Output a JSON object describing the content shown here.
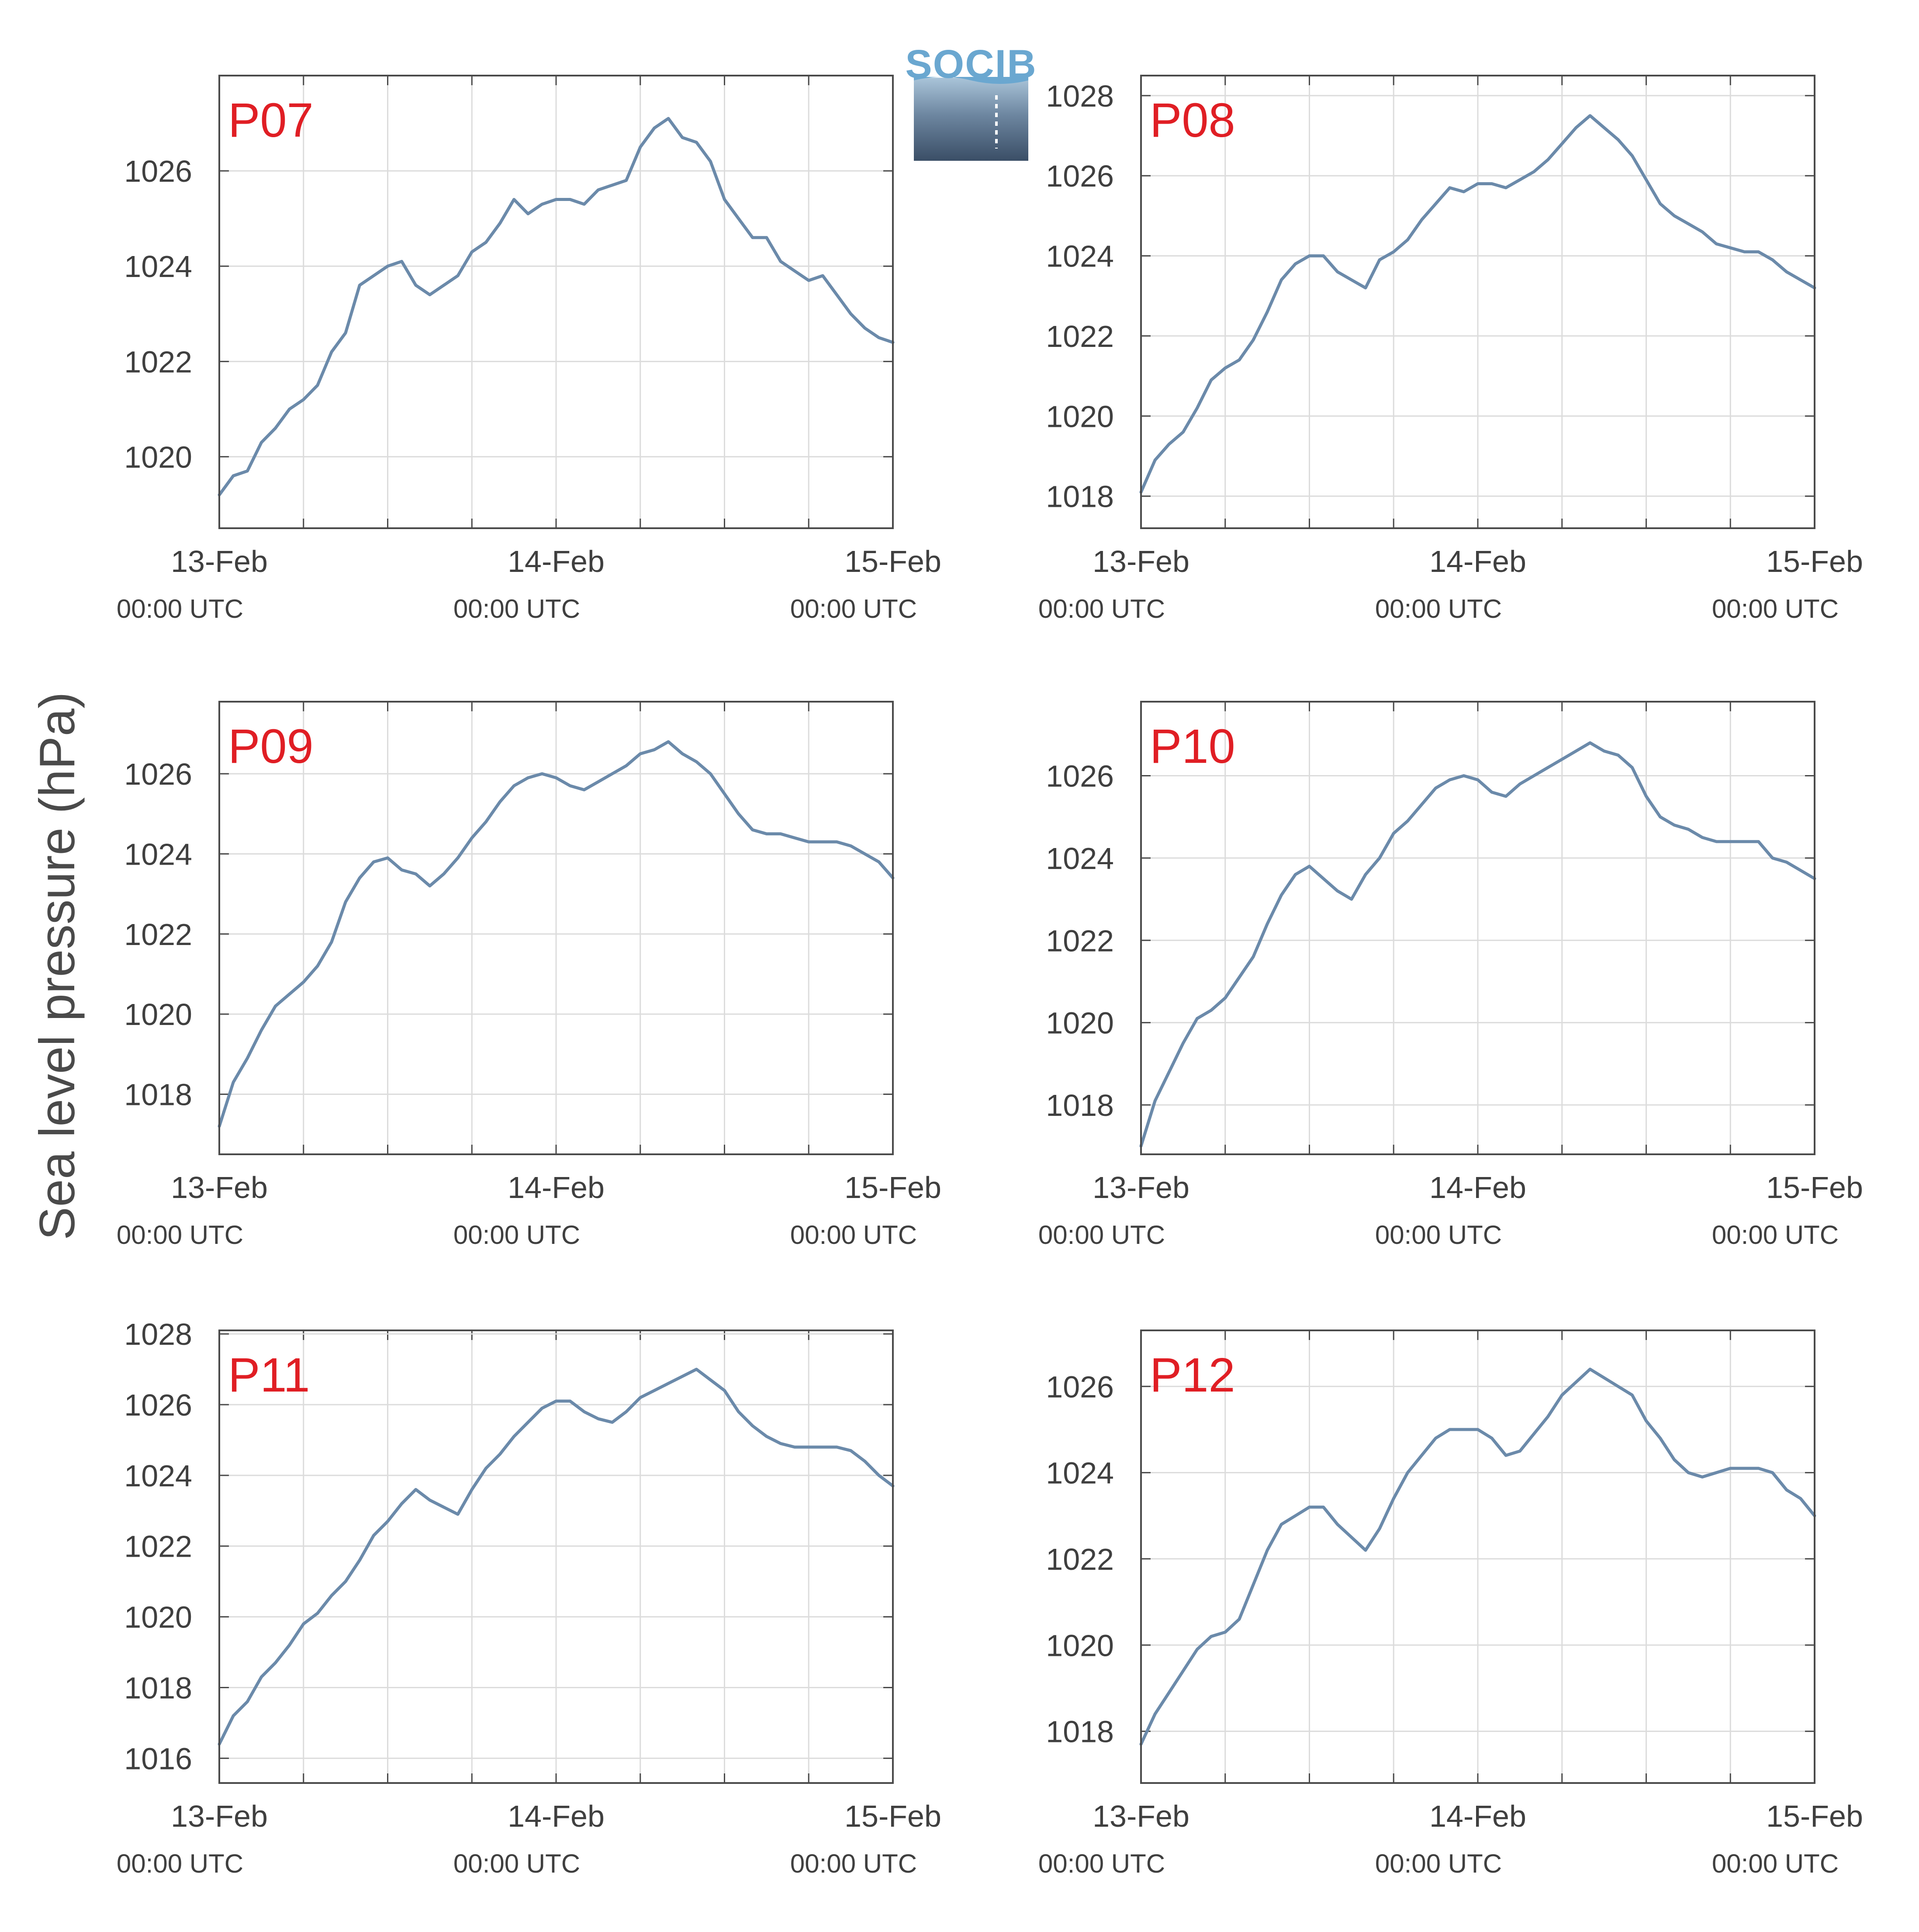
{
  "figure": {
    "ylabel": "Sea level pressure (hPa)",
    "logo_text": "SOCIB"
  },
  "colors": {
    "line": "#6b8aaa",
    "panel_label": "#e01e24",
    "grid": "#dcdcdc",
    "axis": "#4a4a4a",
    "logo_top": "#6aa7d0",
    "logo_bottom": "#3a4e66"
  },
  "chart_data": [
    {
      "type": "line",
      "panel_label": "P07",
      "x_ticks": [
        "13-Feb",
        "14-Feb",
        "15-Feb"
      ],
      "x_tick_sub": "00:00 UTC",
      "x_unit": "hours since 13-Feb 00:00 UTC",
      "xlim": [
        0,
        48
      ],
      "ylim": [
        1018.5,
        1028
      ],
      "y_ticks": [
        1020,
        1022,
        1024,
        1026
      ],
      "grid": true,
      "series": [
        {
          "x": [
            0,
            1,
            2,
            3,
            4,
            5,
            6,
            7,
            8,
            9,
            10,
            11,
            12,
            13,
            14,
            15,
            16,
            17,
            18,
            19,
            20,
            21,
            22,
            23,
            24,
            25,
            26,
            27,
            28,
            29,
            30,
            31,
            32,
            33,
            34,
            35,
            36,
            37,
            38,
            39,
            40,
            41,
            42,
            43,
            44,
            45,
            46,
            47,
            48
          ],
          "values": [
            1019.2,
            1019.6,
            1019.7,
            1020.3,
            1020.6,
            1021.0,
            1021.2,
            1021.5,
            1022.2,
            1022.6,
            1023.6,
            1023.8,
            1024.0,
            1024.1,
            1023.6,
            1023.4,
            1023.6,
            1023.8,
            1024.3,
            1024.5,
            1024.9,
            1025.4,
            1025.1,
            1025.3,
            1025.4,
            1025.4,
            1025.3,
            1025.6,
            1025.7,
            1025.8,
            1026.5,
            1026.9,
            1027.1,
            1026.7,
            1026.6,
            1026.2,
            1025.4,
            1025.0,
            1024.6,
            1024.6,
            1024.1,
            1023.9,
            1023.7,
            1023.8,
            1023.4,
            1023.0,
            1022.7,
            1022.5,
            1022.4
          ]
        }
      ]
    },
    {
      "type": "line",
      "panel_label": "P08",
      "x_ticks": [
        "13-Feb",
        "14-Feb",
        "15-Feb"
      ],
      "x_tick_sub": "00:00 UTC",
      "x_unit": "hours since 13-Feb 00:00 UTC",
      "xlim": [
        0,
        48
      ],
      "ylim": [
        1017.2,
        1028.5
      ],
      "y_ticks": [
        1018,
        1020,
        1022,
        1024,
        1026,
        1028
      ],
      "grid": true,
      "series": [
        {
          "x": [
            0,
            1,
            2,
            3,
            4,
            5,
            6,
            7,
            8,
            9,
            10,
            11,
            12,
            13,
            14,
            15,
            16,
            17,
            18,
            19,
            20,
            21,
            22,
            23,
            24,
            25,
            26,
            27,
            28,
            29,
            30,
            31,
            32,
            33,
            34,
            35,
            36,
            37,
            38,
            39,
            40,
            41,
            42,
            43,
            44,
            45,
            46,
            47,
            48
          ],
          "values": [
            1018.1,
            1018.9,
            1019.3,
            1019.6,
            1020.2,
            1020.9,
            1021.2,
            1021.4,
            1021.9,
            1022.6,
            1023.4,
            1023.8,
            1024.0,
            1024.0,
            1023.6,
            1023.4,
            1023.2,
            1023.9,
            1024.1,
            1024.4,
            1024.9,
            1025.3,
            1025.7,
            1025.6,
            1025.8,
            1025.8,
            1025.7,
            1025.9,
            1026.1,
            1026.4,
            1026.8,
            1027.2,
            1027.5,
            1027.2,
            1026.9,
            1026.5,
            1025.9,
            1025.3,
            1025.0,
            1024.8,
            1024.6,
            1024.3,
            1024.2,
            1024.1,
            1024.1,
            1023.9,
            1023.6,
            1023.4,
            1023.2
          ]
        }
      ]
    },
    {
      "type": "line",
      "panel_label": "P09",
      "x_ticks": [
        "13-Feb",
        "14-Feb",
        "15-Feb"
      ],
      "x_tick_sub": "00:00 UTC",
      "x_unit": "hours since 13-Feb 00:00 UTC",
      "xlim": [
        0,
        48
      ],
      "ylim": [
        1016.5,
        1027.8
      ],
      "y_ticks": [
        1018,
        1020,
        1022,
        1024,
        1026
      ],
      "grid": true,
      "series": [
        {
          "x": [
            0,
            1,
            2,
            3,
            4,
            5,
            6,
            7,
            8,
            9,
            10,
            11,
            12,
            13,
            14,
            15,
            16,
            17,
            18,
            19,
            20,
            21,
            22,
            23,
            24,
            25,
            26,
            27,
            28,
            29,
            30,
            31,
            32,
            33,
            34,
            35,
            36,
            37,
            38,
            39,
            40,
            41,
            42,
            43,
            44,
            45,
            46,
            47,
            48
          ],
          "values": [
            1017.2,
            1018.3,
            1018.9,
            1019.6,
            1020.2,
            1020.5,
            1020.8,
            1021.2,
            1021.8,
            1022.8,
            1023.4,
            1023.8,
            1023.9,
            1023.6,
            1023.5,
            1023.2,
            1023.5,
            1023.9,
            1024.4,
            1024.8,
            1025.3,
            1025.7,
            1025.9,
            1026.0,
            1025.9,
            1025.7,
            1025.6,
            1025.8,
            1026.0,
            1026.2,
            1026.5,
            1026.6,
            1026.8,
            1026.5,
            1026.3,
            1026.0,
            1025.5,
            1025.0,
            1024.6,
            1024.5,
            1024.5,
            1024.4,
            1024.3,
            1024.3,
            1024.3,
            1024.2,
            1024.0,
            1023.8,
            1023.4
          ]
        }
      ]
    },
    {
      "type": "line",
      "panel_label": "P10",
      "x_ticks": [
        "13-Feb",
        "14-Feb",
        "15-Feb"
      ],
      "x_tick_sub": "00:00 UTC",
      "x_unit": "hours since 13-Feb 00:00 UTC",
      "xlim": [
        0,
        48
      ],
      "ylim": [
        1016.8,
        1027.8
      ],
      "y_ticks": [
        1018,
        1020,
        1022,
        1024,
        1026
      ],
      "grid": true,
      "series": [
        {
          "x": [
            0,
            1,
            2,
            3,
            4,
            5,
            6,
            7,
            8,
            9,
            10,
            11,
            12,
            13,
            14,
            15,
            16,
            17,
            18,
            19,
            20,
            21,
            22,
            23,
            24,
            25,
            26,
            27,
            28,
            29,
            30,
            31,
            32,
            33,
            34,
            35,
            36,
            37,
            38,
            39,
            40,
            41,
            42,
            43,
            44,
            45,
            46,
            47,
            48
          ],
          "values": [
            1017.0,
            1018.1,
            1018.8,
            1019.5,
            1020.1,
            1020.3,
            1020.6,
            1021.1,
            1021.6,
            1022.4,
            1023.1,
            1023.6,
            1023.8,
            1023.5,
            1023.2,
            1023.0,
            1023.6,
            1024.0,
            1024.6,
            1024.9,
            1025.3,
            1025.7,
            1025.9,
            1026.0,
            1025.9,
            1025.6,
            1025.5,
            1025.8,
            1026.0,
            1026.2,
            1026.4,
            1026.6,
            1026.8,
            1026.6,
            1026.5,
            1026.2,
            1025.5,
            1025.0,
            1024.8,
            1024.7,
            1024.5,
            1024.4,
            1024.4,
            1024.4,
            1024.4,
            1024.0,
            1023.9,
            1023.7,
            1023.5
          ]
        }
      ]
    },
    {
      "type": "line",
      "panel_label": "P11",
      "x_ticks": [
        "13-Feb",
        "14-Feb",
        "15-Feb"
      ],
      "x_tick_sub": "00:00 UTC",
      "x_unit": "hours since 13-Feb 00:00 UTC",
      "xlim": [
        0,
        48
      ],
      "ylim": [
        1015.3,
        1028.1
      ],
      "y_ticks": [
        1016,
        1018,
        1020,
        1022,
        1024,
        1026,
        1028
      ],
      "grid": true,
      "series": [
        {
          "x": [
            0,
            1,
            2,
            3,
            4,
            5,
            6,
            7,
            8,
            9,
            10,
            11,
            12,
            13,
            14,
            15,
            16,
            17,
            18,
            19,
            20,
            21,
            22,
            23,
            24,
            25,
            26,
            27,
            28,
            29,
            30,
            31,
            32,
            33,
            34,
            35,
            36,
            37,
            38,
            39,
            40,
            41,
            42,
            43,
            44,
            45,
            46,
            47,
            48
          ],
          "values": [
            1016.4,
            1017.2,
            1017.6,
            1018.3,
            1018.7,
            1019.2,
            1019.8,
            1020.1,
            1020.6,
            1021.0,
            1021.6,
            1022.3,
            1022.7,
            1023.2,
            1023.6,
            1023.3,
            1023.1,
            1022.9,
            1023.6,
            1024.2,
            1024.6,
            1025.1,
            1025.5,
            1025.9,
            1026.1,
            1026.1,
            1025.8,
            1025.6,
            1025.5,
            1025.8,
            1026.2,
            1026.4,
            1026.6,
            1026.8,
            1027.0,
            1026.7,
            1026.4,
            1025.8,
            1025.4,
            1025.1,
            1024.9,
            1024.8,
            1024.8,
            1024.8,
            1024.8,
            1024.7,
            1024.4,
            1024.0,
            1023.7
          ]
        }
      ]
    },
    {
      "type": "line",
      "panel_label": "P12",
      "x_ticks": [
        "13-Feb",
        "14-Feb",
        "15-Feb"
      ],
      "x_tick_sub": "00:00 UTC",
      "x_unit": "hours since 13-Feb 00:00 UTC",
      "xlim": [
        0,
        48
      ],
      "ylim": [
        1016.8,
        1027.3
      ],
      "y_ticks": [
        1018,
        1020,
        1022,
        1024,
        1026
      ],
      "grid": true,
      "series": [
        {
          "x": [
            0,
            1,
            2,
            3,
            4,
            5,
            6,
            7,
            8,
            9,
            10,
            11,
            12,
            13,
            14,
            15,
            16,
            17,
            18,
            19,
            20,
            21,
            22,
            23,
            24,
            25,
            26,
            27,
            28,
            29,
            30,
            31,
            32,
            33,
            34,
            35,
            36,
            37,
            38,
            39,
            40,
            41,
            42,
            43,
            44,
            45,
            46,
            47,
            48
          ],
          "values": [
            1017.7,
            1018.4,
            1018.9,
            1019.4,
            1019.9,
            1020.2,
            1020.3,
            1020.6,
            1021.4,
            1022.2,
            1022.8,
            1023.0,
            1023.2,
            1023.2,
            1022.8,
            1022.5,
            1022.2,
            1022.7,
            1023.4,
            1024.0,
            1024.4,
            1024.8,
            1025.0,
            1025.0,
            1025.0,
            1024.8,
            1024.4,
            1024.5,
            1024.9,
            1025.3,
            1025.8,
            1026.1,
            1026.4,
            1026.2,
            1026.0,
            1025.8,
            1025.2,
            1024.8,
            1024.3,
            1024.0,
            1023.9,
            1024.0,
            1024.1,
            1024.1,
            1024.1,
            1024.0,
            1023.6,
            1023.4,
            1023.0
          ]
        }
      ]
    }
  ]
}
